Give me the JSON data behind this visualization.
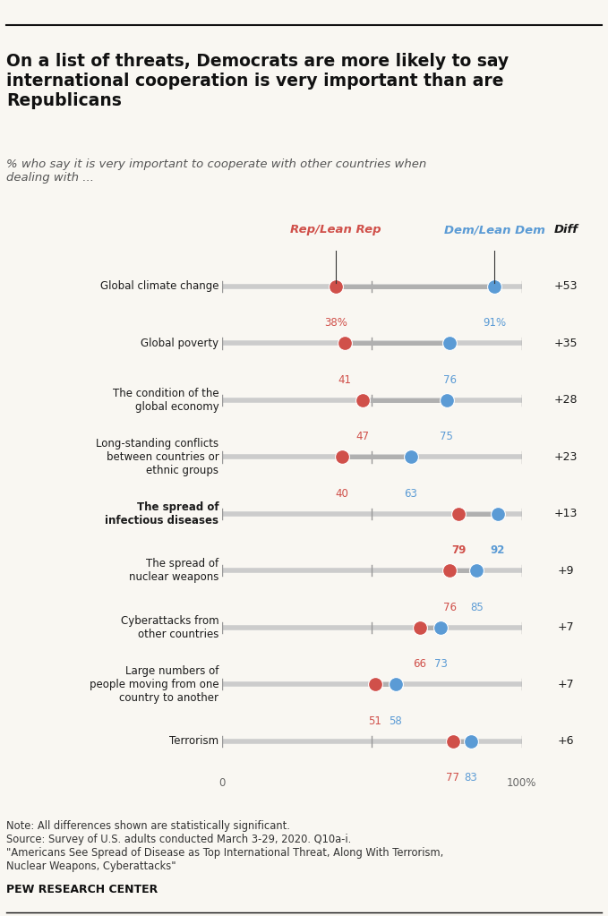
{
  "title": "On a list of threats, Democrats are more likely to say\ninternational cooperation is very important than are\nRepublicans",
  "subtitle": "% who say it is very important to cooperate with other countries when\ndealing with ...",
  "categories": [
    "Global climate change",
    "Global poverty",
    "The condition of the\nglobal economy",
    "Long-standing conflicts\nbetween countries or\nethnic groups",
    "The spread of\ninfectious diseases",
    "The spread of\nnuclear weapons",
    "Cyberattacks from\nother countries",
    "Large numbers of\npeople moving from one\ncountry to another",
    "Terrorism"
  ],
  "bold_categories": [
    4
  ],
  "rep_values": [
    38,
    41,
    47,
    40,
    79,
    76,
    66,
    51,
    77
  ],
  "dem_values": [
    91,
    76,
    75,
    63,
    92,
    85,
    73,
    58,
    83
  ],
  "diff_values": [
    "+53",
    "+35",
    "+28",
    "+23",
    "+13",
    "+9",
    "+7",
    "+7",
    "+6"
  ],
  "rep_color": "#d0504a",
  "dem_color": "#5b9bd5",
  "track_color": "#cccccc",
  "connector_color": "#b0b0b0",
  "rep_label": "Rep/Lean Rep",
  "dem_label": "Dem/Lean Dem",
  "diff_label": "Diff",
  "x_min": 0,
  "x_max": 100,
  "note_text": "Note: All differences shown are statistically significant.\nSource: Survey of U.S. adults conducted March 3-29, 2020. Q10a-i.\n\"Americans See Spread of Disease as Top International Threat, Along With Terrorism,\nNuclear Weapons, Cyberattacks\"",
  "pew_label": "PEW RESEARCH CENTER",
  "rep_label_color": "#d0504a",
  "dem_label_color": "#5b9bd5",
  "background_color": "#f9f7f2",
  "right_panel_color": "#e8e6df"
}
